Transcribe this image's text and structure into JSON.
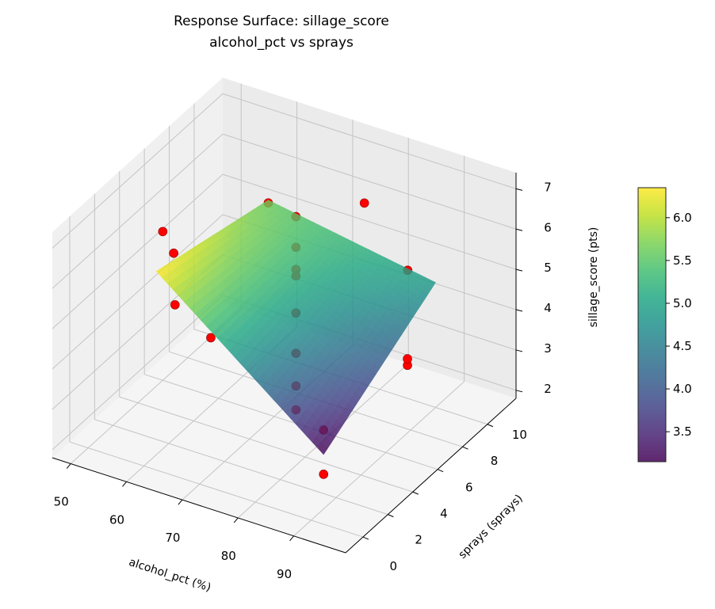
{
  "chart_data": {
    "type": "surface",
    "title_line1": "Response Surface: sillage_score",
    "title_line2": "alcohol_pct vs sprays",
    "xlabel": "alcohol_pct (%)",
    "ylabel": "sprays (sprays)",
    "zlabel": "sillage_score (pts)",
    "xlim": [
      46.7,
      99.3
    ],
    "ylim": [
      -1.4,
      12.3
    ],
    "zlim": [
      1.8,
      7.4
    ],
    "x_ticks": [
      "50",
      "60",
      "70",
      "80",
      "90"
    ],
    "y_ticks": [
      "0",
      "2",
      "4",
      "6",
      "8",
      "10"
    ],
    "z_ticks": [
      "2",
      "3",
      "4",
      "5",
      "6",
      "7"
    ],
    "grid": true,
    "colormap": "viridis",
    "colorbar": {
      "range": [
        3.15,
        6.35
      ],
      "ticks": [
        "3.5",
        "4.0",
        "4.5",
        "5.0",
        "5.5",
        "6.0"
      ]
    },
    "surface": {
      "x": [
        60,
        75,
        90
      ],
      "y": [
        1,
        5.5,
        10
      ],
      "z": [
        [
          6.35,
          5.975,
          5.6
        ],
        [
          4.75,
          5.0,
          5.25
        ],
        [
          3.15,
          4.025,
          4.9
        ]
      ]
    },
    "points_color": "#ff0000",
    "points": [
      [
        75,
        5.5,
        7.12
      ],
      [
        75,
        5.5,
        6.36
      ],
      [
        75,
        5.5,
        5.81
      ],
      [
        75,
        5.5,
        5.65
      ],
      [
        75,
        5.5,
        4.73
      ],
      [
        75,
        5.5,
        3.73
      ],
      [
        75,
        5.5,
        2.92
      ],
      [
        75,
        5.5,
        2.33
      ],
      [
        90,
        1,
        2.66
      ],
      [
        90,
        1,
        3.76
      ],
      [
        95,
        5.5,
        4.33
      ],
      [
        95,
        5.5,
        4.49
      ],
      [
        85,
        10,
        4.98
      ],
      [
        75,
        11,
        5.92
      ],
      [
        60,
        10,
        5.53
      ],
      [
        50,
        6,
        5.49
      ],
      [
        62,
        1.5,
        6.75
      ],
      [
        60,
        2.5,
        5.1
      ],
      [
        72,
        0,
        5.52
      ]
    ]
  }
}
